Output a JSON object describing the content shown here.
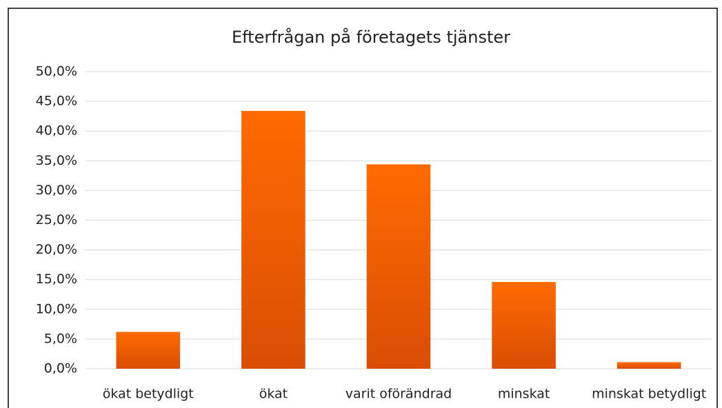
{
  "chart_data": {
    "type": "bar",
    "title": "Efterfrågan på företagets tjänster",
    "categories": [
      "ökat betydligt",
      "ökat",
      "varit oförändrad",
      "minskat",
      "minskat betydligt"
    ],
    "values": [
      6.2,
      43.4,
      34.4,
      14.6,
      1.1
    ],
    "color": "#ff6600",
    "ylim": [
      0,
      50
    ],
    "yticks": [
      {
        "value": 0,
        "label": "0,0%"
      },
      {
        "value": 5,
        "label": "5,0%"
      },
      {
        "value": 10,
        "label": "10,0%"
      },
      {
        "value": 15,
        "label": "15,0%"
      },
      {
        "value": 20,
        "label": "20,0%"
      },
      {
        "value": 25,
        "label": "25,0%"
      },
      {
        "value": 30,
        "label": "30,0%"
      },
      {
        "value": 35,
        "label": "35,0%"
      },
      {
        "value": 40,
        "label": "40,0%"
      },
      {
        "value": 45,
        "label": "45,0%"
      },
      {
        "value": 50,
        "label": "50,0%"
      }
    ],
    "grid": true
  }
}
